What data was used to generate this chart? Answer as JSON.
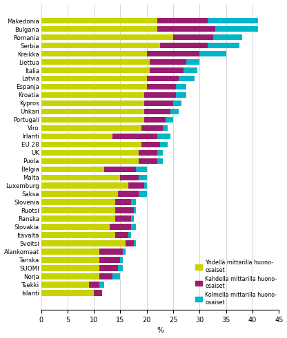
{
  "countries": [
    "Makedonia",
    "Bulgaria",
    "Romania",
    "Serbia",
    "Kreikka",
    "Liettua",
    "Italia",
    "Latvia",
    "Espanja",
    "Kroatia",
    "Kypros",
    "Unkari",
    "Portugali",
    "Viro",
    "Irlanti",
    "EU 28",
    "UK",
    "Puola",
    "Belgia",
    "Malta",
    "Luxemburg",
    "Saksa",
    "Slovenia",
    "Ruotsi",
    "Ranska",
    "Slovakia",
    "Itävalta",
    "Sveitsi",
    "Alankomaat",
    "Tanska",
    "SUOMI",
    "Norja",
    "Tsekki",
    "Islanti"
  ],
  "yhden": [
    22.0,
    22.0,
    25.0,
    22.5,
    20.0,
    20.5,
    20.5,
    20.0,
    20.0,
    19.5,
    19.5,
    19.5,
    19.5,
    19.0,
    13.5,
    19.0,
    18.5,
    18.5,
    12.0,
    15.0,
    16.5,
    14.5,
    14.0,
    14.0,
    14.0,
    13.0,
    14.0,
    16.0,
    11.0,
    11.0,
    11.0,
    11.0,
    9.0,
    10.0
  ],
  "kahden": [
    9.5,
    11.0,
    7.5,
    9.0,
    10.0,
    7.0,
    6.5,
    6.0,
    5.5,
    6.0,
    5.5,
    5.0,
    4.0,
    4.0,
    8.5,
    3.5,
    3.5,
    3.5,
    6.0,
    3.5,
    3.0,
    4.0,
    3.0,
    3.5,
    3.0,
    4.0,
    2.5,
    1.5,
    4.5,
    4.0,
    3.5,
    2.5,
    2.0,
    1.5
  ],
  "kolmen": [
    9.5,
    8.0,
    5.5,
    6.0,
    5.0,
    2.5,
    2.5,
    3.0,
    2.0,
    2.0,
    1.5,
    1.5,
    1.5,
    1.0,
    2.5,
    1.5,
    1.0,
    1.0,
    2.0,
    1.5,
    0.5,
    1.5,
    1.0,
    0.5,
    0.5,
    1.0,
    0.5,
    0.5,
    0.5,
    0.5,
    1.0,
    1.5,
    1.0,
    0.0
  ],
  "color_yhden": "#c7d400",
  "color_kahden": "#9b1c6e",
  "color_kolmen": "#00b5c8",
  "legend_labels": [
    "Yhdellä mittarilla huono-\nosaiset",
    "Kahdella mittarilla huono-\nosaiset",
    "Kolmella mittarilla huono-\nosaiset"
  ],
  "xlabel": "%",
  "xlim": [
    0,
    45
  ],
  "xticks": [
    0,
    5,
    10,
    15,
    20,
    25,
    30,
    35,
    40,
    45
  ],
  "background_color": "#ffffff",
  "grid_color": "#d0d0d0"
}
